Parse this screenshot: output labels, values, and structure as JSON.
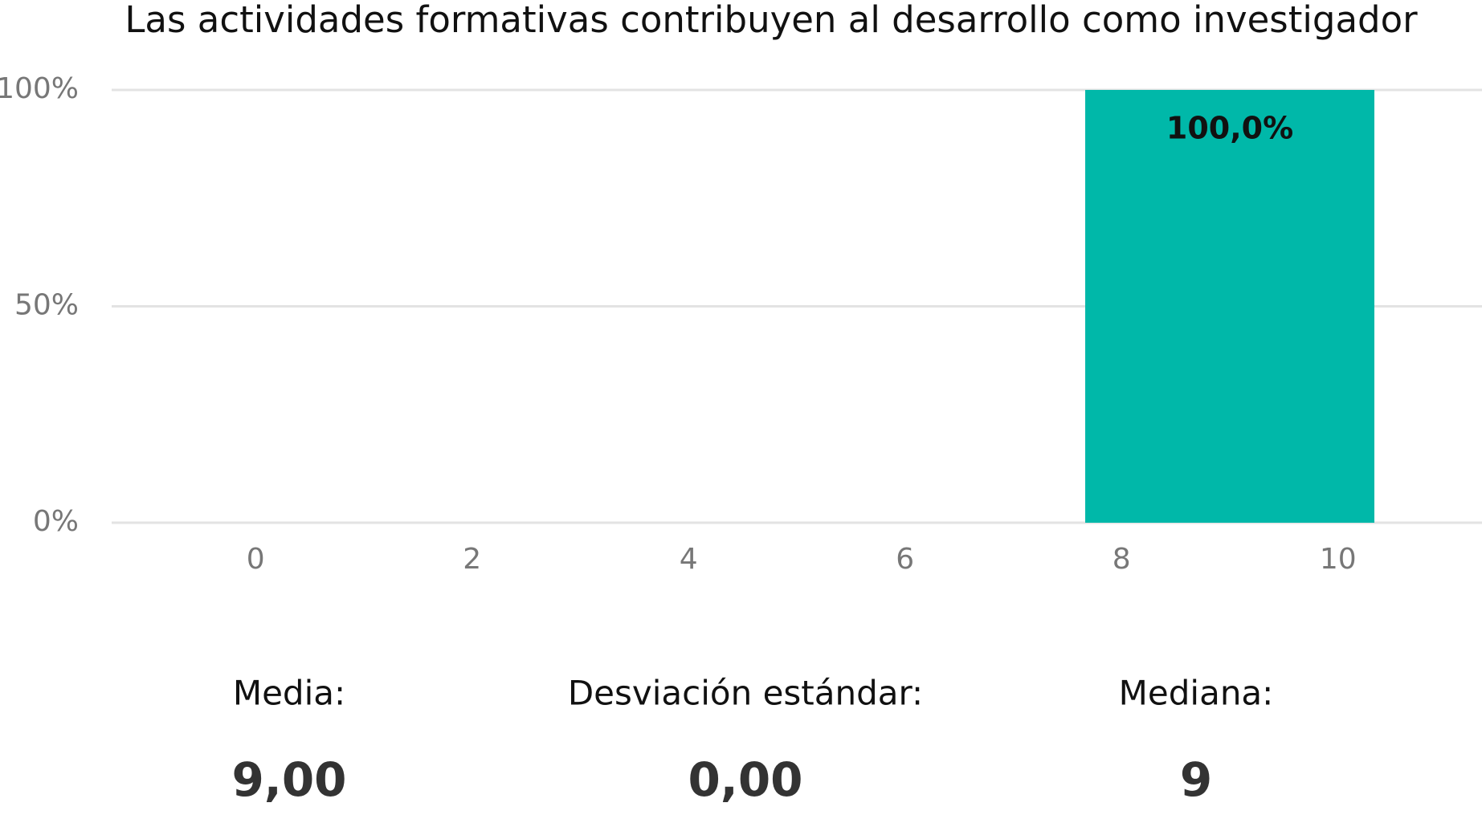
{
  "chart_data": {
    "type": "bar",
    "title": "Las actividades formativas contribuyen al desarrollo como investigador",
    "x": [
      9
    ],
    "values": [
      100
    ],
    "value_labels": [
      "100,0%"
    ],
    "color": "#00b8a9",
    "xlim": [
      -1.33,
      11.33
    ],
    "xticks": [
      0,
      2,
      4,
      6,
      8,
      10
    ],
    "ylim": [
      0,
      100
    ],
    "yticks": [
      {
        "value": 0,
        "label": "0%"
      },
      {
        "value": 50,
        "label": "50%"
      },
      {
        "value": 100,
        "label": "100%"
      }
    ],
    "grid": true
  },
  "stats": [
    {
      "label": "Media:",
      "value": "9,00"
    },
    {
      "label": "Desviación estándar:",
      "value": "0,00"
    },
    {
      "label": "Mediana:",
      "value": "9"
    }
  ]
}
